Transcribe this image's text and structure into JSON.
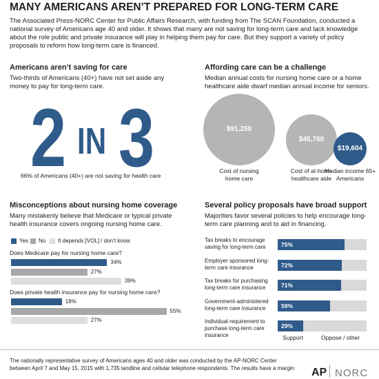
{
  "header": {
    "title": "MANY AMERICANS AREN’T PREPARED FOR LONG-TERM CARE",
    "intro": "The Associated Press-NORC Center for Public Affairs Research, with funding from The SCAN Foundation, conducted a national survey of Americans age 40 and older. It shows that many are not saving for long-term care and lack knowledge about the role public and private insurance will play in helping them pay for care. But they support a variety of policy proposals to reform how long-term care is financed."
  },
  "saving": {
    "heading": "Americans aren’t saving for care",
    "text": "Two-thirds of Americans (40+) have not set aside any money to pay for long-term care.",
    "big_number": {
      "left": "2",
      "middle": "IN",
      "right": "3"
    },
    "caption": "66% of Americans (40+) are not saving for health care"
  },
  "chart_data": [
    {
      "type": "bubble",
      "title": "Affording care can be a challenge",
      "subtitle": "Median annual costs for nursing home care or a home healthcare aide dwarf median annual income for seniors.",
      "categories": [
        "Cost of nursing home care",
        "Cost of at-home healthcare aide",
        "Median income 65+ Americans"
      ],
      "values": [
        91250,
        45760,
        19604
      ],
      "value_labels": [
        "$91,250",
        "$45,760",
        "$19,604"
      ],
      "colors": [
        "#b5b5b5",
        "#b5b5b5",
        "#2f5b8a"
      ]
    },
    {
      "type": "grouped-hbar",
      "title": "Misconceptions about nursing home coverage",
      "subtitle": "Many mistakenly believe that Medicare or typical private health insurance covers ongoing nursing home care.",
      "categories": [
        "Does Medicare pay for nursing home care?",
        "Does private health insurance pay for nursing home care?"
      ],
      "series": [
        {
          "name": "Yes",
          "color": "#2f5b8a",
          "values": [
            34,
            18
          ],
          "value_labels": [
            "34%",
            "18%"
          ]
        },
        {
          "name": "No",
          "color": "#a8a8a8",
          "values": [
            27,
            55
          ],
          "value_labels": [
            "27%",
            "55%"
          ]
        },
        {
          "name": "It depends [VOL] / don’t know",
          "color": "#dedede",
          "values": [
            39,
            27
          ],
          "value_labels": [
            "39%",
            "27%"
          ]
        }
      ]
    },
    {
      "type": "stacked-hbar",
      "title": "Several policy proposals have broad support",
      "subtitle": "Majorities favor several policies to help encourage long-term care planning and to aid in financing.",
      "categories": [
        "Tax breaks to encourage saving for long-term care",
        "Employer sponsored long-term care insurance",
        "Tax breaks for purchasing long-term care insurance",
        "Government-administered long-term care insurance",
        "Individual requirement to purchase long-term care insurance"
      ],
      "series": [
        {
          "name": "Support",
          "color": "#2f5b8a",
          "values": [
            75,
            72,
            71,
            59,
            29
          ],
          "value_labels": [
            "75%",
            "72%",
            "71%",
            "59%",
            "29%"
          ]
        },
        {
          "name": "Oppose / other",
          "color": "#d9d9d9",
          "values": [
            25,
            28,
            29,
            41,
            71
          ]
        }
      ]
    }
  ],
  "footer": {
    "note": "The nationally representative survey of Americans ages 40 and older was conducted by the AP-NORC Center between April 7 and May 15, 2015 with 1,735 landline and cellular telephone respondents. The results have a margin",
    "logos": [
      "AP",
      "NORC"
    ]
  }
}
